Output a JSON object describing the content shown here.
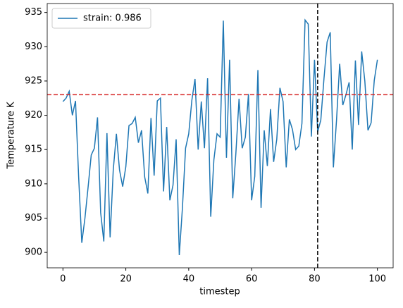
{
  "chart_data": {
    "type": "line",
    "xlabel": "timestep",
    "ylabel": "Temperature K",
    "x": [
      0,
      1,
      2,
      3,
      4,
      5,
      6,
      7,
      8,
      9,
      10,
      11,
      12,
      13,
      14,
      15,
      16,
      17,
      18,
      19,
      20,
      21,
      22,
      23,
      24,
      25,
      26,
      27,
      28,
      29,
      30,
      31,
      32,
      33,
      34,
      35,
      36,
      37,
      38,
      39,
      40,
      41,
      42,
      43,
      44,
      45,
      46,
      47,
      48,
      49,
      50,
      51,
      52,
      53,
      54,
      55,
      56,
      57,
      58,
      59,
      60,
      61,
      62,
      63,
      64,
      65,
      66,
      67,
      68,
      69,
      70,
      71,
      72,
      73,
      74,
      75,
      76,
      77,
      78,
      79,
      80,
      81,
      82,
      83,
      84,
      85,
      86,
      87,
      88,
      89,
      90,
      91,
      92,
      93,
      94,
      95,
      96,
      97,
      98,
      99,
      100
    ],
    "series": [
      {
        "name": "strain: 0.986",
        "color": "#1f77b4",
        "values": [
          922.0,
          922.5,
          923.5,
          920.0,
          922.1,
          911.0,
          901.4,
          905.0,
          909.5,
          914.2,
          915.2,
          919.7,
          905.8,
          901.6,
          917.4,
          902.2,
          912.0,
          917.3,
          912.0,
          909.6,
          912.5,
          918.5,
          918.8,
          919.7,
          916.0,
          917.8,
          911.0,
          908.6,
          919.6,
          911.2,
          922.1,
          922.5,
          908.9,
          918.3,
          907.6,
          909.8,
          916.5,
          899.6,
          906.5,
          915.2,
          917.3,
          922.2,
          925.3,
          915.0,
          922.0,
          915.2,
          925.4,
          905.2,
          913.5,
          917.3,
          916.8,
          933.8,
          913.8,
          928.1,
          907.9,
          914.5,
          922.4,
          915.2,
          916.8,
          923.1,
          907.6,
          911.1,
          926.6,
          906.5,
          917.8,
          912.6,
          920.9,
          913.2,
          916.5,
          924.0,
          922.0,
          912.4,
          919.4,
          917.9,
          915.0,
          915.5,
          918.8,
          933.9,
          933.3,
          916.9,
          928.1,
          917.6,
          919.3,
          925.3,
          930.7,
          932.1,
          912.4,
          919.3,
          927.5,
          921.5,
          923.0,
          924.8,
          915.0,
          928.0,
          918.6,
          929.3,
          925.0,
          917.8,
          918.9,
          925.1,
          928.1
        ]
      }
    ],
    "reference_lines": [
      {
        "axis": "y",
        "value": 923,
        "color": "#d62728"
      },
      {
        "axis": "x",
        "value": 81,
        "color": "#000000"
      }
    ],
    "xlim": [
      -5,
      105
    ],
    "ylim": [
      897.75,
      936.3
    ],
    "xticks": [
      0,
      20,
      40,
      60,
      80,
      100
    ],
    "yticks": [
      900,
      905,
      910,
      915,
      920,
      925,
      930,
      935
    ],
    "legend": "upper left"
  }
}
